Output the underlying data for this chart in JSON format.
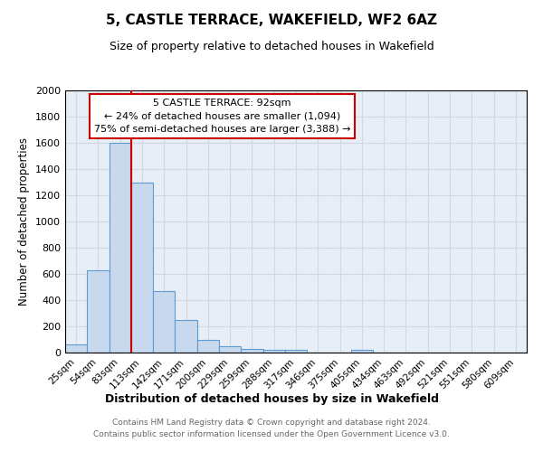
{
  "title": "5, CASTLE TERRACE, WAKEFIELD, WF2 6AZ",
  "subtitle": "Size of property relative to detached houses in Wakefield",
  "xlabel": "Distribution of detached houses by size in Wakefield",
  "ylabel": "Number of detached properties",
  "bin_labels": [
    "25sqm",
    "54sqm",
    "83sqm",
    "113sqm",
    "142sqm",
    "171sqm",
    "200sqm",
    "229sqm",
    "259sqm",
    "288sqm",
    "317sqm",
    "346sqm",
    "375sqm",
    "405sqm",
    "434sqm",
    "463sqm",
    "492sqm",
    "521sqm",
    "551sqm",
    "580sqm",
    "609sqm"
  ],
  "bar_heights": [
    65,
    630,
    1600,
    1300,
    470,
    250,
    100,
    50,
    30,
    20,
    20,
    0,
    0,
    20,
    0,
    0,
    0,
    0,
    0,
    0,
    0
  ],
  "bar_color": "#c9d9ed",
  "bar_edge_color": "#5b9bd5",
  "ylim": [
    0,
    2000
  ],
  "yticks": [
    0,
    200,
    400,
    600,
    800,
    1000,
    1200,
    1400,
    1600,
    1800,
    2000
  ],
  "property_line_label": "5 CASTLE TERRACE: 92sqm",
  "annotation_line1": "← 24% of detached houses are smaller (1,094)",
  "annotation_line2": "75% of semi-detached houses are larger (3,388) →",
  "annotation_box_color": "#ffffff",
  "annotation_box_edge": "#cc0000",
  "vline_color": "#cc0000",
  "grid_color": "#d0d8e8",
  "bg_color": "#e8eef5",
  "fig_bg_color": "#ffffff",
  "footnote1": "Contains HM Land Registry data © Crown copyright and database right 2024.",
  "footnote2": "Contains public sector information licensed under the Open Government Licence v3.0.",
  "vline_x_idx": 2.5
}
